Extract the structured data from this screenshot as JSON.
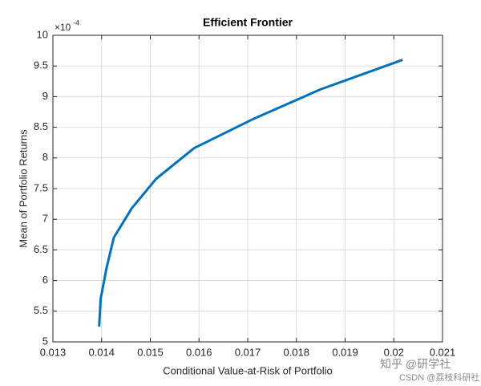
{
  "chart_data": {
    "type": "line",
    "title": "Efficient Frontier",
    "x_label": "Conditional Value-at-Risk of Portfolio",
    "y_label": "Mean of Portfolio Returns",
    "y_multiplier": "×10",
    "y_exponent": "-4",
    "x": [
      0.01395,
      0.01398,
      0.0141,
      0.01425,
      0.01462,
      0.01512,
      0.0159,
      0.0171,
      0.0185,
      0.02018
    ],
    "values": [
      5.25,
      5.7,
      6.2,
      6.7,
      7.18,
      7.66,
      8.16,
      8.63,
      9.12,
      9.6
    ],
    "color": "#0072bd",
    "xlim": [
      0.013,
      0.021
    ],
    "ylim": [
      5,
      10
    ],
    "xticks": [
      0.013,
      0.014,
      0.015,
      0.016,
      0.017,
      0.018,
      0.019,
      0.02,
      0.021
    ],
    "yticks": [
      5,
      5.5,
      6,
      6.5,
      7,
      7.5,
      8,
      8.5,
      9,
      9.5,
      10
    ],
    "grid": true,
    "watermark": [
      "知乎 @研学社",
      "CSDN @荔枝科研社"
    ]
  }
}
